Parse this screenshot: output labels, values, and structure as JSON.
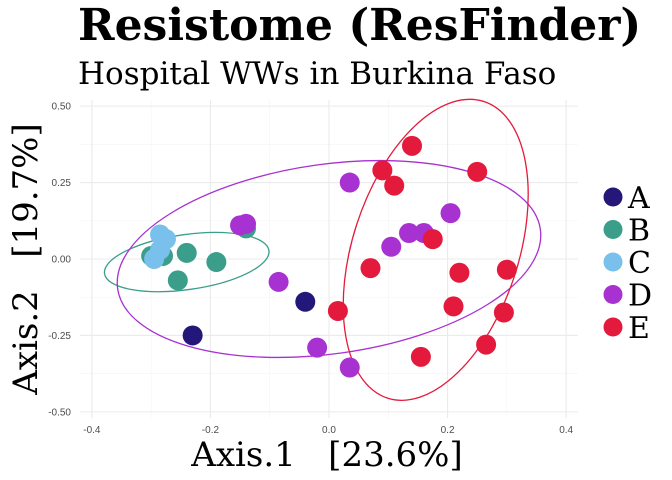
{
  "chart_data": {
    "type": "scatter",
    "title": "Resistome (ResFinder)",
    "subtitle": "Hospital WWs in Burkina Faso",
    "xlabel": "Axis.1   [23.6%]",
    "ylabel": "Axis.2   [19.7%]",
    "xlim": [
      -0.42,
      0.42
    ],
    "ylim": [
      -0.52,
      0.52
    ],
    "x_ticks": [
      -0.4,
      -0.2,
      0.0,
      0.2,
      0.4
    ],
    "x_tick_labels": [
      "-0.4",
      "-0.2",
      "0.0",
      "0.2",
      "0.4"
    ],
    "y_ticks": [
      -0.5,
      -0.25,
      0.0,
      0.25,
      0.5
    ],
    "y_tick_labels": [
      "-0.50",
      "-0.25",
      "0.00",
      "0.25",
      "0.50"
    ],
    "grid": true,
    "legend_position": "right",
    "series": [
      {
        "name": "A",
        "color": "#24177a",
        "points": [
          [
            -0.23,
            -0.25
          ],
          [
            -0.04,
            -0.14
          ]
        ]
      },
      {
        "name": "B",
        "color": "#3a9e8a",
        "points": [
          [
            -0.3,
            0.01
          ],
          [
            -0.28,
            0.01
          ],
          [
            -0.24,
            0.02
          ],
          [
            -0.255,
            -0.07
          ],
          [
            -0.19,
            -0.01
          ],
          [
            -0.14,
            0.1
          ]
        ]
      },
      {
        "name": "C",
        "color": "#79c0ec",
        "points": [
          [
            -0.285,
            0.08
          ],
          [
            -0.275,
            0.065
          ],
          [
            -0.285,
            0.03
          ],
          [
            -0.295,
            0.0
          ]
        ]
      },
      {
        "name": "D",
        "color": "#a831d1",
        "points": [
          [
            -0.15,
            0.11
          ],
          [
            -0.14,
            0.115
          ],
          [
            -0.085,
            -0.075
          ],
          [
            -0.02,
            -0.29
          ],
          [
            0.035,
            0.25
          ],
          [
            0.035,
            -0.355
          ],
          [
            0.105,
            0.04
          ],
          [
            0.135,
            0.085
          ],
          [
            0.16,
            0.085
          ],
          [
            0.205,
            0.15
          ]
        ]
      },
      {
        "name": "E",
        "color": "#e41a3c",
        "points": [
          [
            0.015,
            -0.17
          ],
          [
            0.07,
            -0.03
          ],
          [
            0.09,
            0.29
          ],
          [
            0.11,
            0.24
          ],
          [
            0.14,
            0.37
          ],
          [
            0.175,
            0.065
          ],
          [
            0.25,
            0.285
          ],
          [
            0.22,
            -0.045
          ],
          [
            0.21,
            -0.155
          ],
          [
            0.155,
            -0.32
          ],
          [
            0.265,
            -0.28
          ],
          [
            0.295,
            -0.175
          ],
          [
            0.3,
            -0.035
          ]
        ]
      }
    ],
    "ellipses": [
      {
        "group": "B",
        "color": "#3a9e8a",
        "cx": -0.24,
        "cy": -0.01,
        "rx": 0.14,
        "ry": 0.09,
        "angle_deg": -8
      },
      {
        "group": "D",
        "color": "#a831d1",
        "cx": 0.0,
        "cy": 0.0,
        "rx": 0.36,
        "ry": 0.31,
        "angle_deg": -8
      },
      {
        "group": "E",
        "color": "#e41a3c",
        "cx": 0.18,
        "cy": 0.03,
        "rx": 0.14,
        "ry": 0.51,
        "angle_deg": 18
      }
    ]
  }
}
